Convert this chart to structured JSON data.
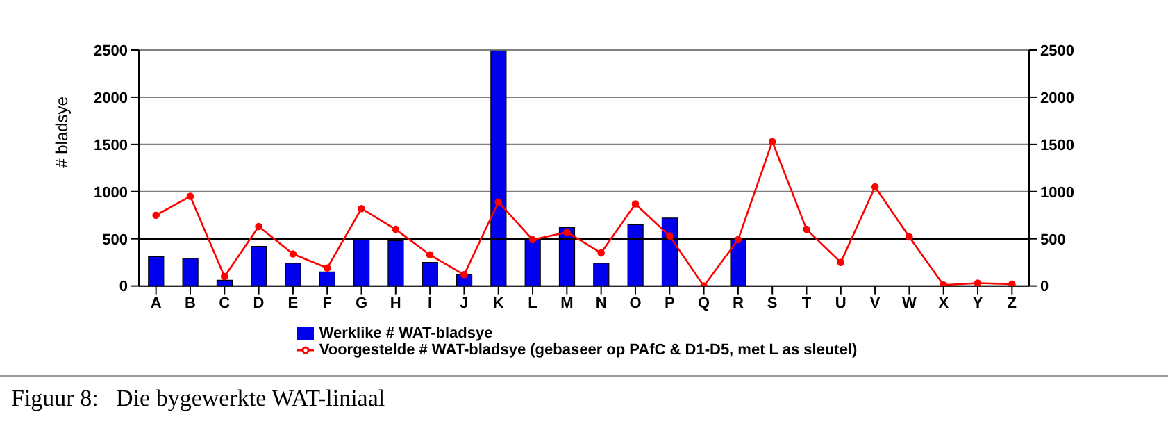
{
  "chart_data": {
    "type": "bar",
    "ylabel": "# bladsye",
    "categories": [
      "A",
      "B",
      "C",
      "D",
      "E",
      "F",
      "G",
      "H",
      "I",
      "J",
      "K",
      "L",
      "M",
      "N",
      "O",
      "P",
      "Q",
      "R",
      "S",
      "T",
      "U",
      "V",
      "W",
      "X",
      "Y",
      "Z"
    ],
    "series": [
      {
        "name": "Werklike # WAT-bladsye",
        "color": "#0000ee",
        "values": [
          310,
          290,
          60,
          420,
          240,
          150,
          500,
          480,
          250,
          120,
          2490,
          490,
          620,
          240,
          650,
          720,
          null,
          500,
          null,
          null,
          null,
          null,
          null,
          null,
          null,
          null
        ]
      },
      {
        "name": "Voorgestelde # WAT-bladsye (gebaseer op PAfC & D1-D5, met L as sleutel)",
        "type": "line",
        "color": "#ff0000",
        "values": [
          750,
          950,
          100,
          630,
          340,
          190,
          820,
          600,
          330,
          120,
          890,
          490,
          570,
          350,
          870,
          530,
          0,
          490,
          1530,
          600,
          250,
          1050,
          520,
          10,
          30,
          20
        ]
      }
    ],
    "ylim": [
      0,
      2500
    ],
    "yticks": [
      0,
      500,
      1000,
      1500,
      2000,
      2500
    ],
    "y2lim": [
      0,
      2500
    ],
    "y2ticks": [
      0,
      500,
      1000,
      1500,
      2000,
      2500
    ],
    "grid": "y",
    "legend": "bottom",
    "marker": "circle",
    "line_style": "solid",
    "ref_lines": [
      {
        "axis": "y",
        "value": 500,
        "color": "#000000"
      }
    ],
    "annotations": [
      "Figuur 8:   Die bygewerkte WAT-liniaal"
    ]
  }
}
